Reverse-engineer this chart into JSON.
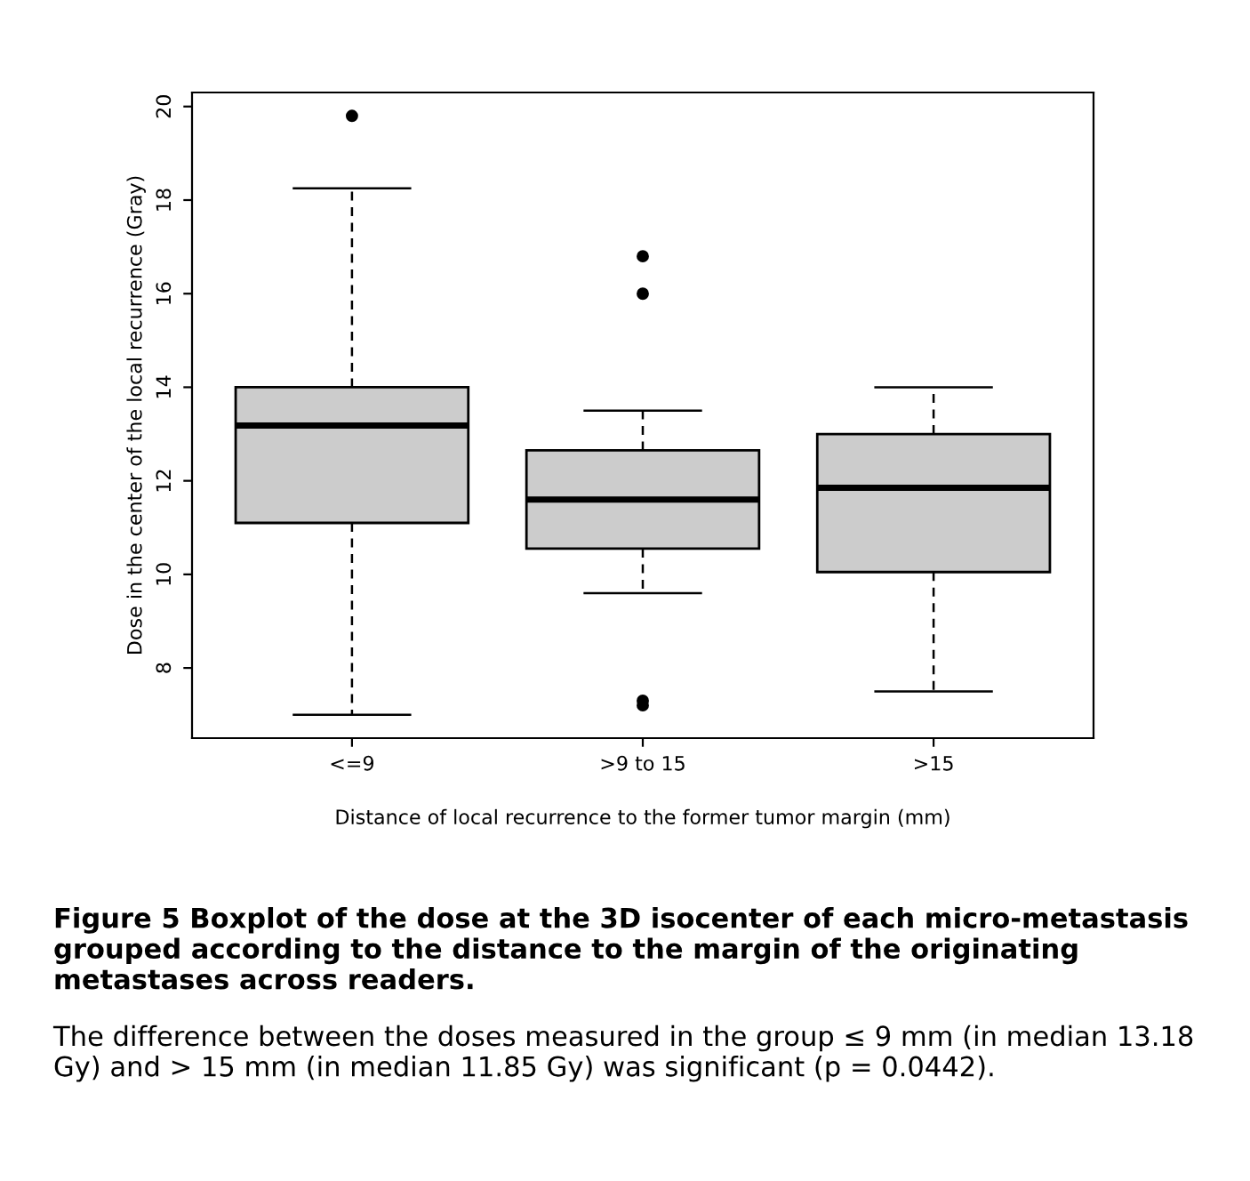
{
  "chart_data": {
    "type": "box",
    "xlabel": "Distance of local recurrence to the former tumor margin (mm)",
    "ylabel": "Dose in the center of the local recurrence (Gray)",
    "categories": [
      "<=9",
      ">9 to 15",
      ">15"
    ],
    "color": "#cccccc",
    "boxes": [
      {
        "low": 7.0,
        "q1": 11.1,
        "median": 13.18,
        "q3": 14.0,
        "high": 18.25,
        "outliers": [
          19.8
        ]
      },
      {
        "low": 9.6,
        "q1": 10.55,
        "median": 11.6,
        "q3": 12.65,
        "high": 13.5,
        "outliers": [
          16.8,
          16.0,
          7.3,
          7.2
        ]
      },
      {
        "low": 7.5,
        "q1": 10.05,
        "median": 11.85,
        "q3": 13.0,
        "high": 14.0
      }
    ],
    "ylim": [
      6.5,
      20.3
    ],
    "yticks": [
      8,
      10,
      12,
      14,
      16,
      18,
      20
    ],
    "grid": false,
    "annotations": [
      "Figure 5 Boxplot of the dose at the 3D isocenter of each micro-metastasis grouped according to the distance to the margin of the originating metastases across readers.",
      "The difference between the doses measured in the group ≤ 9 mm (in median 13.18 Gy) and > 15 mm (in median 11.85 Gy) was significant (p = 0.0442)."
    ]
  }
}
